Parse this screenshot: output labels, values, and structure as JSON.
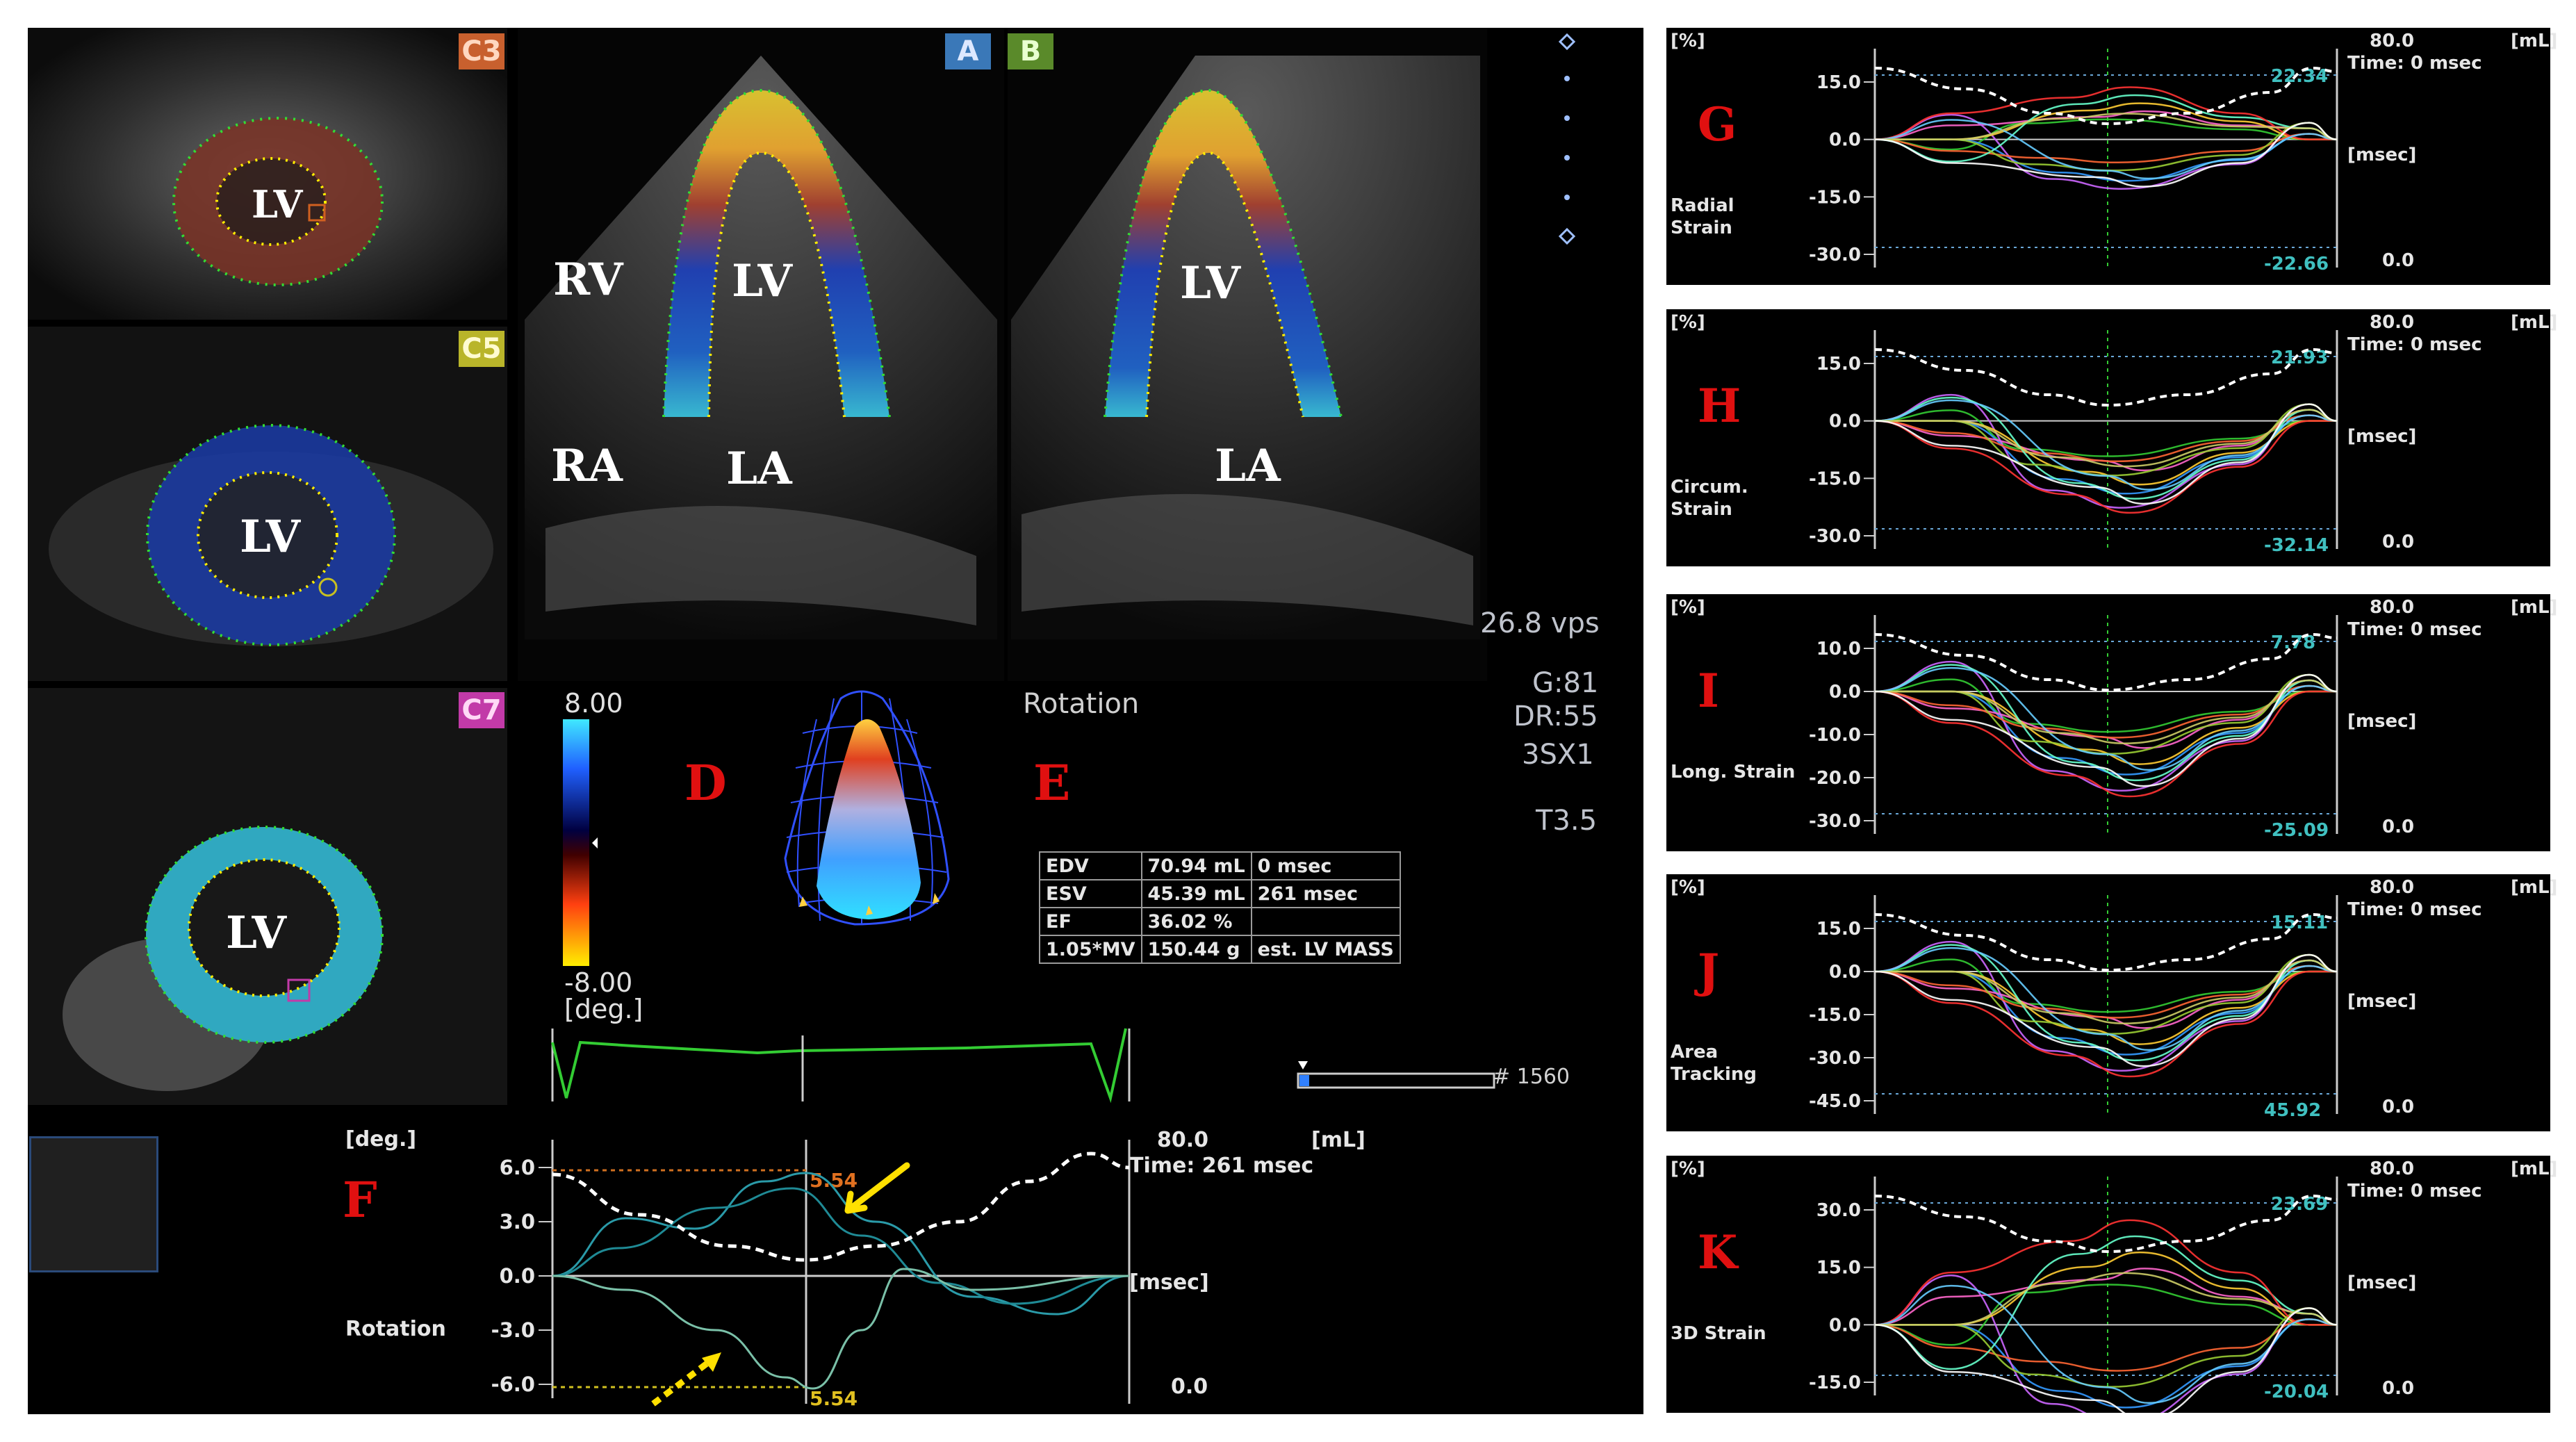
{
  "views": {
    "short_axis": [
      {
        "tag": "C3",
        "tag_bg": "#c8602e",
        "label": "LV"
      },
      {
        "tag": "C5",
        "tag_bg": "#b9b52a",
        "label": "LV"
      },
      {
        "tag": "C7",
        "tag_bg": "#c23aa8",
        "label": "LV"
      }
    ],
    "apical_a": {
      "tag": "A",
      "tag_bg": "#3a78b8",
      "labels": {
        "rv": "RV",
        "lv": "LV",
        "ra": "RA",
        "la": "LA"
      }
    },
    "apical_b": {
      "tag": "B",
      "tag_bg": "#5a8a2a",
      "labels": {
        "lv": "LV",
        "la": "LA"
      }
    }
  },
  "acquisition": {
    "vps": "26.8 vps",
    "gain": "G:81",
    "dr": "DR:55",
    "probe": "3SX1",
    "freq": "T3.5"
  },
  "color_scale": {
    "max": "8.00",
    "min": "-8.00",
    "unit": "[deg.]"
  },
  "panel_letters": {
    "d": "D",
    "e": "E",
    "f": "F",
    "g": "G",
    "h": "H",
    "i": "I",
    "j": "J",
    "k": "K"
  },
  "parameter_label": "Rotation",
  "volume_table": [
    [
      "EDV",
      "70.94 mL",
      "0 msec"
    ],
    [
      "ESV",
      "45.39 mL",
      "261 msec"
    ],
    [
      "EF",
      "36.02 %",
      ""
    ],
    [
      "1.05*MV",
      "150.44 g",
      "est. LV MASS"
    ]
  ],
  "frame_counter": "# 1560",
  "rotation_graph": {
    "y_unit": "[deg.]",
    "ticks": [
      "6.0",
      "3.0",
      "0.0",
      "-3.0",
      "-6.0"
    ],
    "side_label": "Rotation",
    "right_top": "80.0",
    "right_unit": "[mL]",
    "time": "Time: 261 msec",
    "x_unit": "[msec]",
    "right_bottom": "0.0",
    "peak_max": "5.54",
    "peak_min": "5.54"
  },
  "strain_graphs": [
    {
      "letter": "G",
      "side_label": "Radial\nStrain",
      "ticks": [
        "15.0",
        "0.0",
        "-15.0",
        "-30.0"
      ],
      "peak_max": "22.34",
      "peak_min": "-22.66",
      "time": "Time: 0 msec"
    },
    {
      "letter": "H",
      "side_label": "Circum.\nStrain",
      "ticks": [
        "15.0",
        "0.0",
        "-15.0",
        "-30.0"
      ],
      "peak_max": "21.93",
      "peak_min": "-32.14",
      "time": "Time: 0 msec"
    },
    {
      "letter": "I",
      "side_label": "Long. Strain",
      "ticks": [
        "10.0",
        "0.0",
        "-10.0",
        "-20.0",
        "-30.0"
      ],
      "peak_max": "7.78",
      "peak_min": "-25.09",
      "time": "Time: 0 msec"
    },
    {
      "letter": "J",
      "side_label": "Area\nTracking",
      "ticks": [
        "15.0",
        "0.0",
        "-15.0",
        "-30.0",
        "-45.0"
      ],
      "peak_max": "15.11",
      "peak_min": "45.92",
      "time": "Time: 0 msec"
    },
    {
      "letter": "K",
      "side_label": "3D Strain",
      "ticks": [
        "30.0",
        "15.0",
        "0.0",
        "-15.0"
      ],
      "peak_max": "23.69",
      "peak_min": "-20.04",
      "time": "Time: 0 msec"
    }
  ],
  "strain_common": {
    "y_unit": "[%]",
    "right_top": "80.0",
    "right_unit": "[mL]",
    "x_unit": "[msec]",
    "right_bottom": "0.0"
  },
  "colors": {
    "myocardium_red": "#a04030",
    "myocardium_blue": "#2040b0",
    "myocardium_cyan": "#38b0c8",
    "volume_curve": "#ffffff",
    "contour_green": "#33dd33",
    "contour_yellow": "#ffee00"
  }
}
